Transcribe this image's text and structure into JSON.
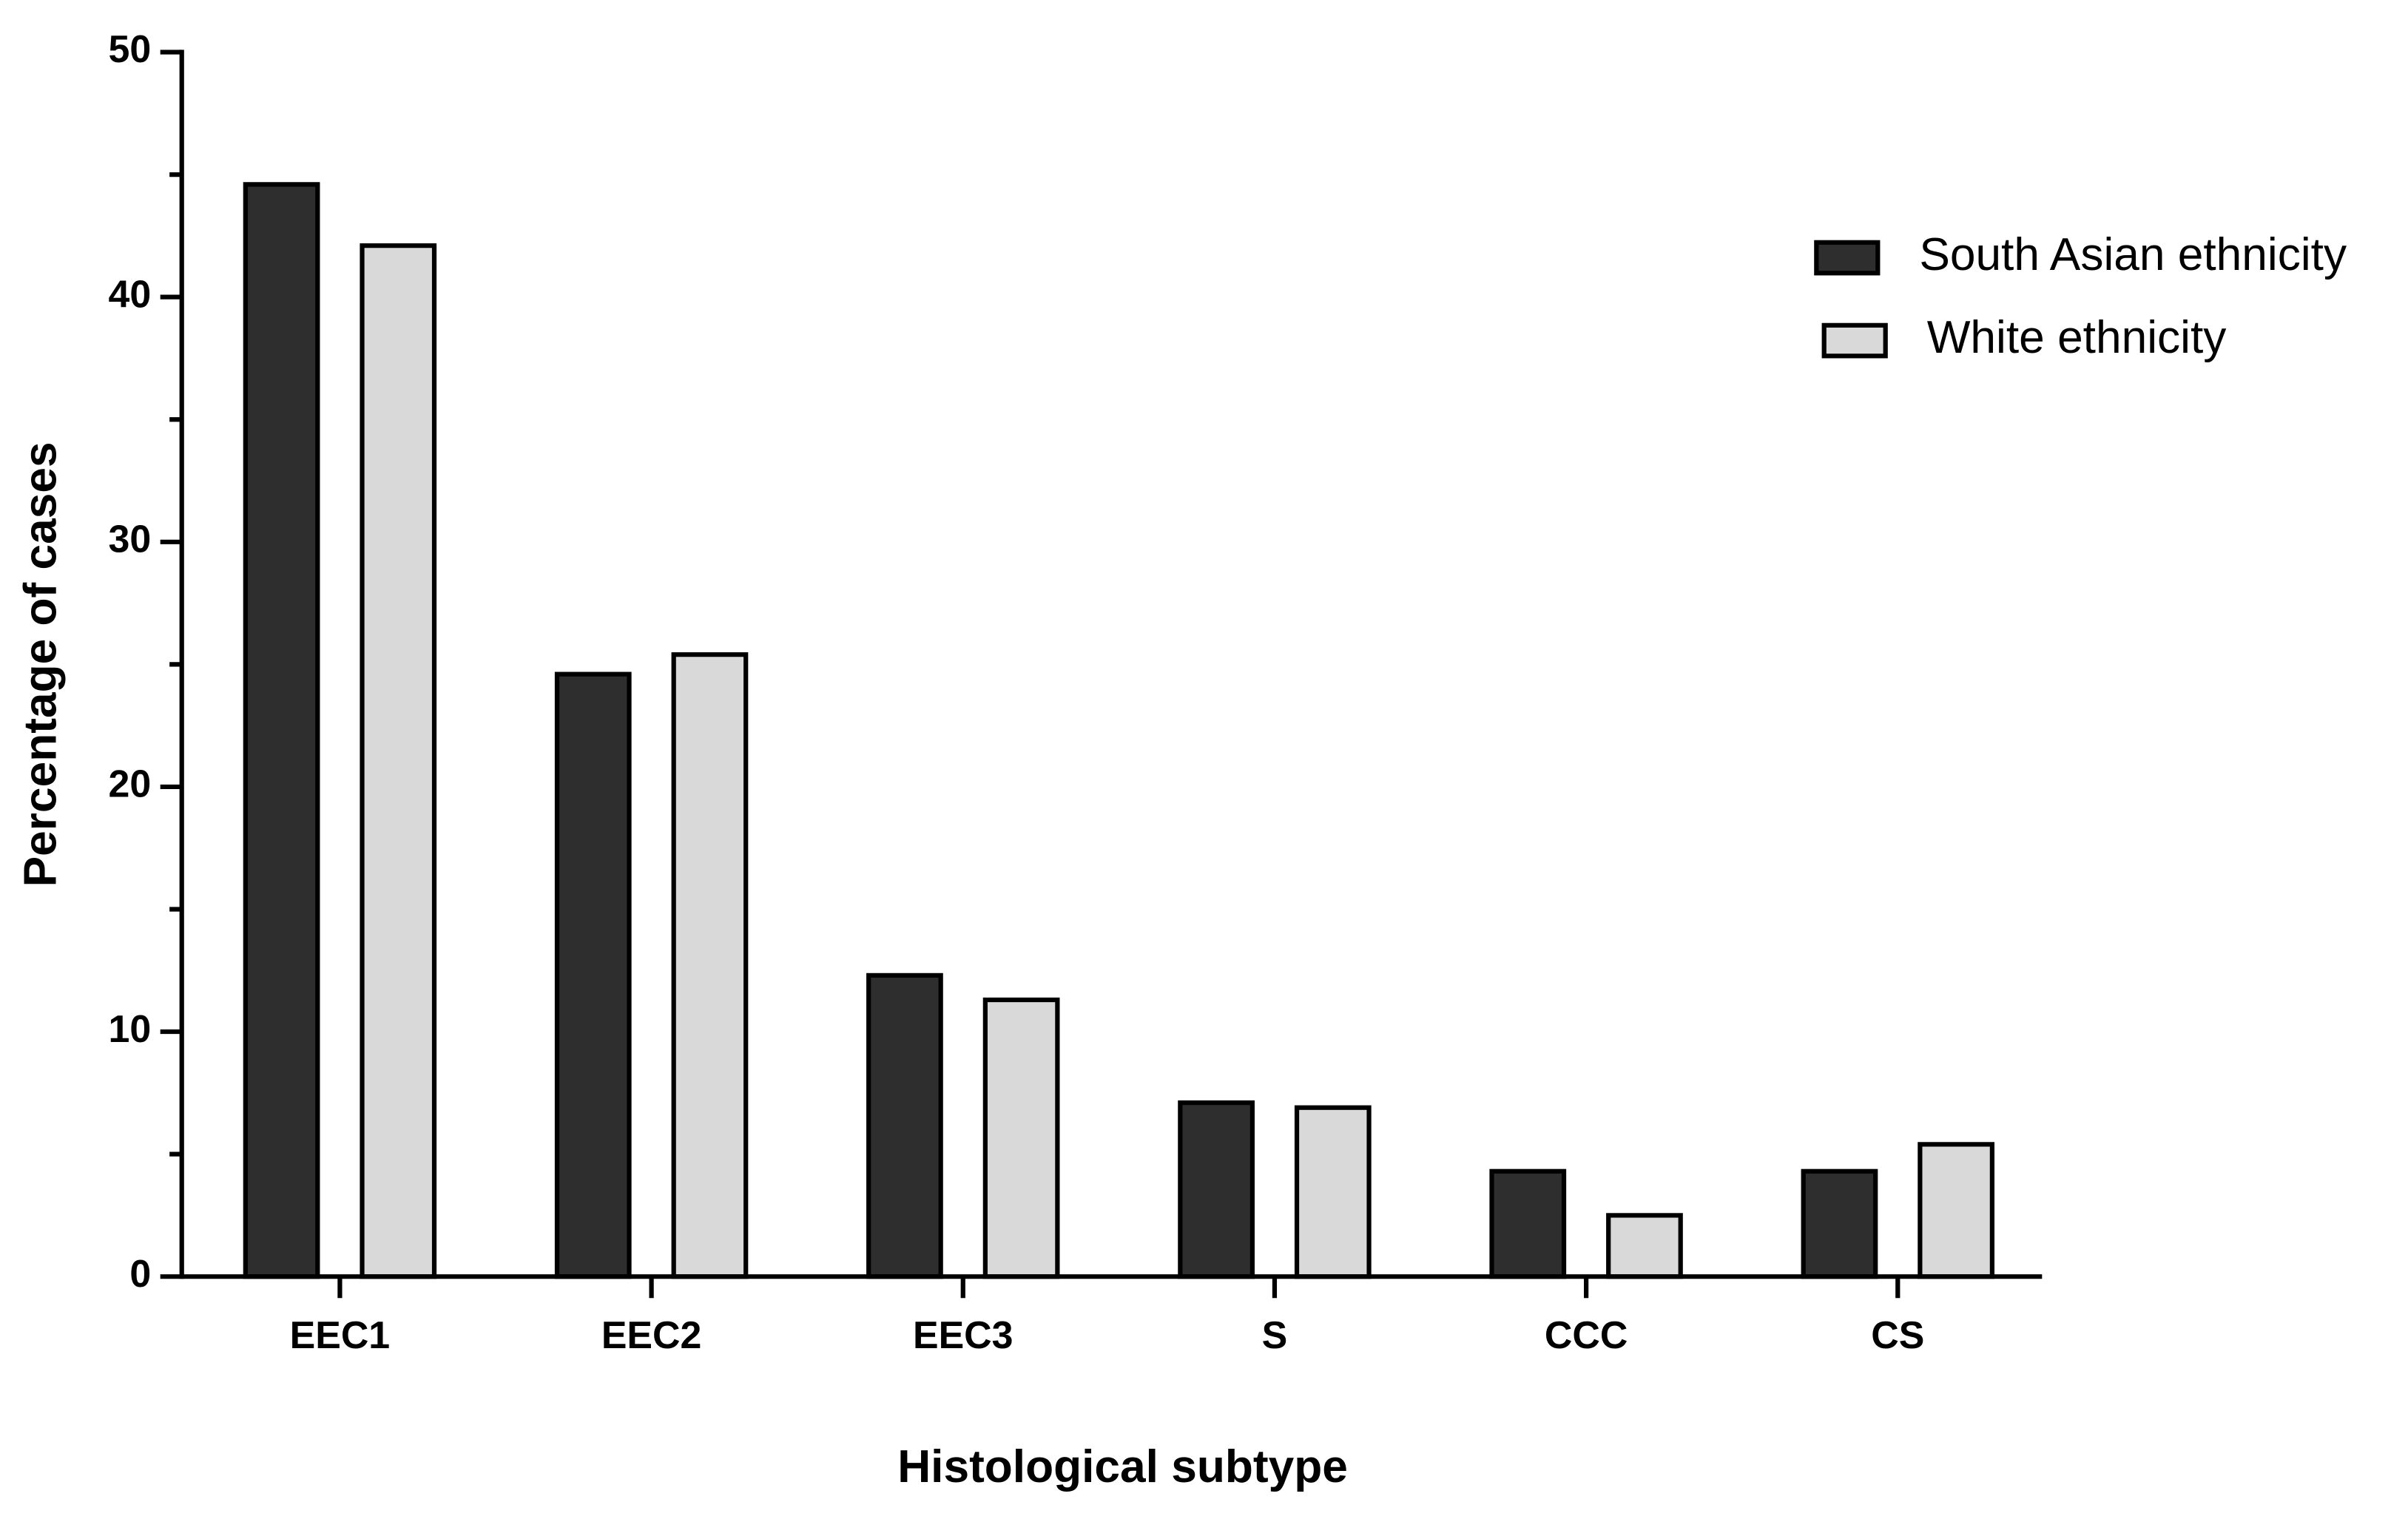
{
  "chart_data": {
    "type": "bar",
    "x_label": "Histological subtype",
    "y_label": "Percentage of cases",
    "categories": [
      "EEC1",
      "EEC2",
      "EEC3",
      "S",
      "CCC",
      "CS"
    ],
    "series": [
      {
        "name": "South Asian ethnicity",
        "color": "#2e2e2e",
        "values": [
          44.6,
          24.6,
          12.3,
          7.1,
          4.3,
          4.3
        ]
      },
      {
        "name": "White ethnicity",
        "color": "#d9d9d9",
        "values": [
          42.1,
          25.4,
          11.3,
          6.9,
          2.5,
          5.4
        ]
      }
    ],
    "ylim": [
      0,
      50
    ],
    "yticks": [
      0,
      10,
      20,
      30,
      40,
      50
    ],
    "yminorticks": [
      5,
      15,
      25,
      35,
      45
    ],
    "legend": "upper right"
  }
}
